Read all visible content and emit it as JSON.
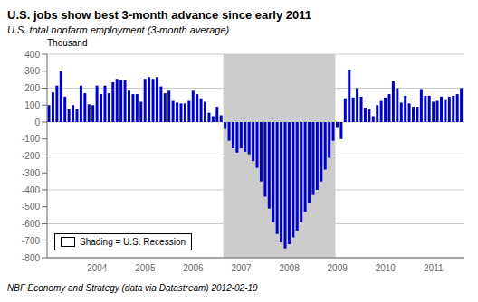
{
  "chart_data": {
    "type": "bar",
    "title": "U.S. jobs show best 3-month advance since early 2011",
    "subtitle": "U.S. total nonfarm employment (3-month average)",
    "ylabel": "Thousand",
    "footer": "NBF Economy and Strategy (data via Datastream) 2012-02-19",
    "categories": [
      null,
      null,
      null,
      null,
      null,
      null,
      null,
      null,
      null,
      null,
      null,
      null,
      "2004",
      null,
      null,
      null,
      null,
      null,
      null,
      null,
      null,
      null,
      null,
      null,
      "2005",
      null,
      null,
      null,
      null,
      null,
      null,
      null,
      null,
      null,
      null,
      null,
      "2006",
      null,
      null,
      null,
      null,
      null,
      null,
      null,
      null,
      null,
      null,
      null,
      "2007",
      null,
      null,
      null,
      null,
      null,
      null,
      null,
      null,
      null,
      null,
      null,
      "2008",
      null,
      null,
      null,
      null,
      null,
      null,
      null,
      null,
      null,
      null,
      null,
      "2009",
      null,
      null,
      null,
      null,
      null,
      null,
      null,
      null,
      null,
      null,
      null,
      "2010",
      null,
      null,
      null,
      null,
      null,
      null,
      null,
      null,
      null,
      null,
      null,
      "2011",
      null,
      null,
      null,
      null,
      null,
      null,
      null
    ],
    "values": [
      100,
      175,
      215,
      300,
      150,
      75,
      100,
      75,
      215,
      170,
      105,
      100,
      215,
      165,
      215,
      170,
      235,
      255,
      250,
      245,
      185,
      165,
      165,
      120,
      255,
      265,
      255,
      265,
      210,
      170,
      185,
      125,
      115,
      110,
      110,
      125,
      185,
      165,
      140,
      120,
      55,
      35,
      90,
      40,
      -40,
      -110,
      -155,
      -180,
      -155,
      -175,
      -190,
      -230,
      -270,
      -350,
      -440,
      -510,
      -590,
      -660,
      -710,
      -745,
      -720,
      -680,
      -640,
      -590,
      -530,
      -475,
      -430,
      -400,
      -350,
      -280,
      -210,
      -110,
      -35,
      -100,
      140,
      310,
      145,
      200,
      150,
      85,
      75,
      35,
      100,
      125,
      145,
      165,
      240,
      200,
      115,
      155,
      110,
      90,
      90,
      195,
      155,
      155,
      120,
      125,
      150,
      130,
      150,
      155,
      165,
      200
    ],
    "color": "#0000CC",
    "ylim": [
      -800,
      400
    ],
    "yticks": [
      -800,
      -700,
      -600,
      -500,
      -400,
      -300,
      -200,
      -100,
      0,
      100,
      200,
      300,
      400
    ],
    "grid": true,
    "legend": "lower left",
    "shading": {
      "start": 44,
      "end": 71,
      "color": "#CCCCCC",
      "label": "Shading = U.S. Recession"
    }
  }
}
